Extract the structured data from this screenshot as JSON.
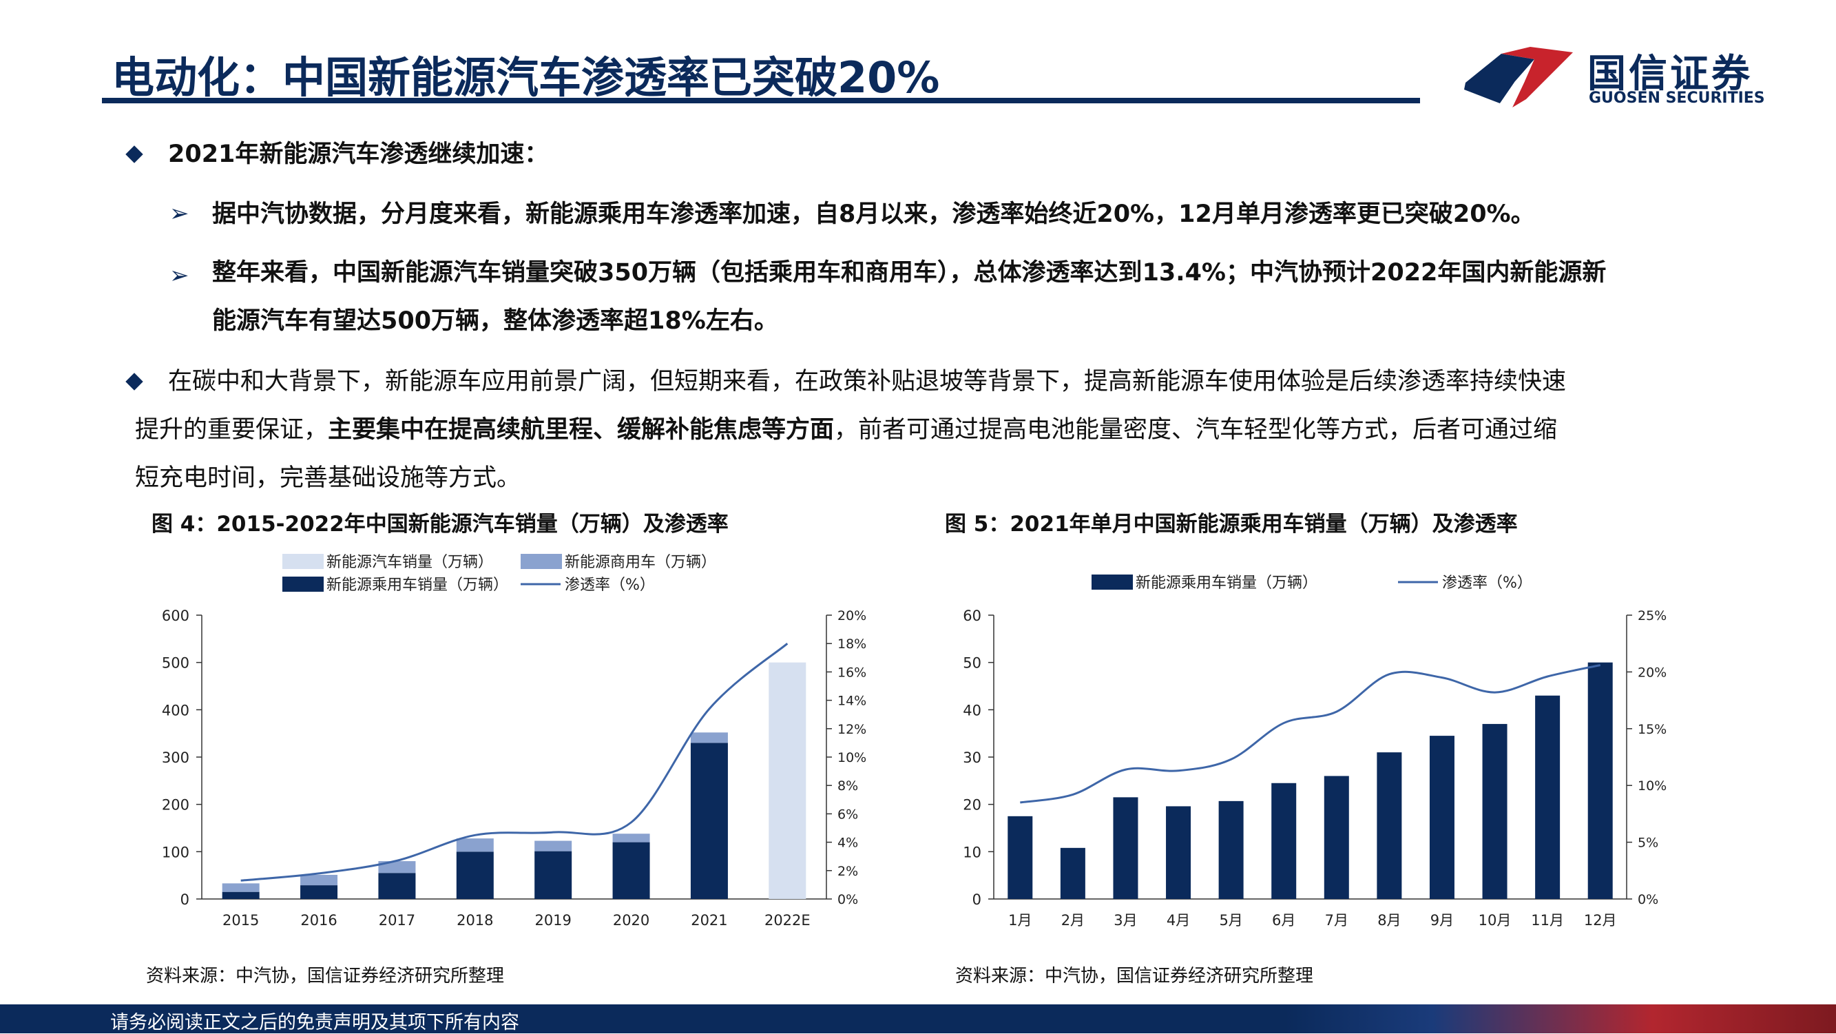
{
  "header": {
    "title": "电动化：中国新能源汽车渗透率已突破20%",
    "logo_cn": "国信证券",
    "logo_en": "GUOSEN SECURITIES"
  },
  "content": {
    "bullet1": "2021年新能源汽车渗透继续加速：",
    "sub1": "据中汽协数据，分月度来看，新能源乘用车渗透率加速，自8月以来，渗透率始终近20%，12月单月渗透率更已突破20%。",
    "sub2_line1": "整年来看，中国新能源汽车销量突破350万辆（包括乘用车和商用车），总体渗透率达到13.4%；中汽协预计2022年国内新能源新",
    "sub2_line2": "能源汽车有望达500万辆，整体渗透率超18%左右。",
    "bullet2_line1": "在碳中和大背景下，新能源车应用前景广阔，但短期来看，在政策补贴退坡等背景下，提高新能源车使用体验是后续渗透率持续快速",
    "bullet2_line2_pre": "提升的重要保证，",
    "bullet2_line2_bold": "主要集中在提高续航里程、缓解补能焦虑等方面",
    "bullet2_line2_post": "，前者可通过提高电池能量密度、汽车轻型化等方式，后者可通过缩",
    "bullet2_line3": "短充电时间，完善基础设施等方式。"
  },
  "figures": {
    "fig4_title": "图 4：2015-2022年中国新能源汽车销量（万辆）及渗透率",
    "fig5_title": "图 5：2021年单月中国新能源乘用车销量（万辆）及渗透率",
    "source_left": "资料来源：中汽协，国信证券经济研究所整理",
    "source_right": "资料来源：中汽协，国信证券经济研究所整理"
  },
  "footer": {
    "disclaimer": "请务必阅读正文之后的免责声明及其项下所有内容"
  },
  "colors": {
    "navy": "#0b2a5b",
    "commercial": "#8aa2cf",
    "forecast": "#d6e0f0",
    "line": "#3e66a8",
    "red": "#c8232c"
  },
  "chart_data": [
    {
      "type": "bar",
      "stacked": true,
      "categories": [
        "2015",
        "2016",
        "2017",
        "2018",
        "2019",
        "2020",
        "2021",
        "2022E"
      ],
      "series": [
        {
          "name": "新能源乘用车销量（万辆）",
          "kind": "bar",
          "values": [
            15,
            29,
            55,
            100,
            101,
            120,
            330,
            null
          ]
        },
        {
          "name": "新能源商用车（万辆）",
          "kind": "bar",
          "values": [
            18,
            22,
            25,
            28,
            22,
            18,
            22,
            null
          ]
        },
        {
          "name": "新能源汽车销量（万辆）",
          "kind": "bar",
          "values": [
            null,
            null,
            null,
            null,
            null,
            null,
            null,
            500
          ]
        },
        {
          "name": "渗透率（%）",
          "kind": "line",
          "axis": "right",
          "values": [
            1.3,
            1.8,
            2.7,
            4.5,
            4.7,
            5.4,
            13.4,
            18.0
          ]
        }
      ],
      "y_ticks": [
        "0",
        "100",
        "200",
        "300",
        "400",
        "500",
        "600"
      ],
      "y2_ticks": [
        "0%",
        "2%",
        "4%",
        "6%",
        "8%",
        "10%",
        "12%",
        "14%",
        "16%",
        "18%",
        "20%"
      ],
      "ylim": [
        0,
        600
      ],
      "y2lim": [
        0,
        20
      ],
      "legend": "top"
    },
    {
      "type": "bar",
      "categories": [
        "1月",
        "2月",
        "3月",
        "4月",
        "5月",
        "6月",
        "7月",
        "8月",
        "9月",
        "10月",
        "11月",
        "12月"
      ],
      "series": [
        {
          "name": "新能源乘用车销量（万辆）",
          "kind": "bar",
          "values": [
            17.5,
            10.8,
            21.5,
            19.6,
            20.7,
            24.5,
            26.0,
            31.0,
            34.5,
            37.0,
            43.0,
            50.0
          ]
        },
        {
          "name": "渗透率（%）",
          "kind": "line",
          "axis": "right",
          "values": [
            8.5,
            9.2,
            11.4,
            11.3,
            12.3,
            15.5,
            16.5,
            19.8,
            19.5,
            18.2,
            19.6,
            20.6
          ]
        }
      ],
      "y_ticks": [
        "0",
        "10",
        "20",
        "30",
        "40",
        "50",
        "60"
      ],
      "y2_ticks": [
        "0%",
        "5%",
        "10%",
        "15%",
        "20%",
        "25%"
      ],
      "ylim": [
        0,
        60
      ],
      "y2lim": [
        0,
        25
      ],
      "legend": "top"
    }
  ]
}
